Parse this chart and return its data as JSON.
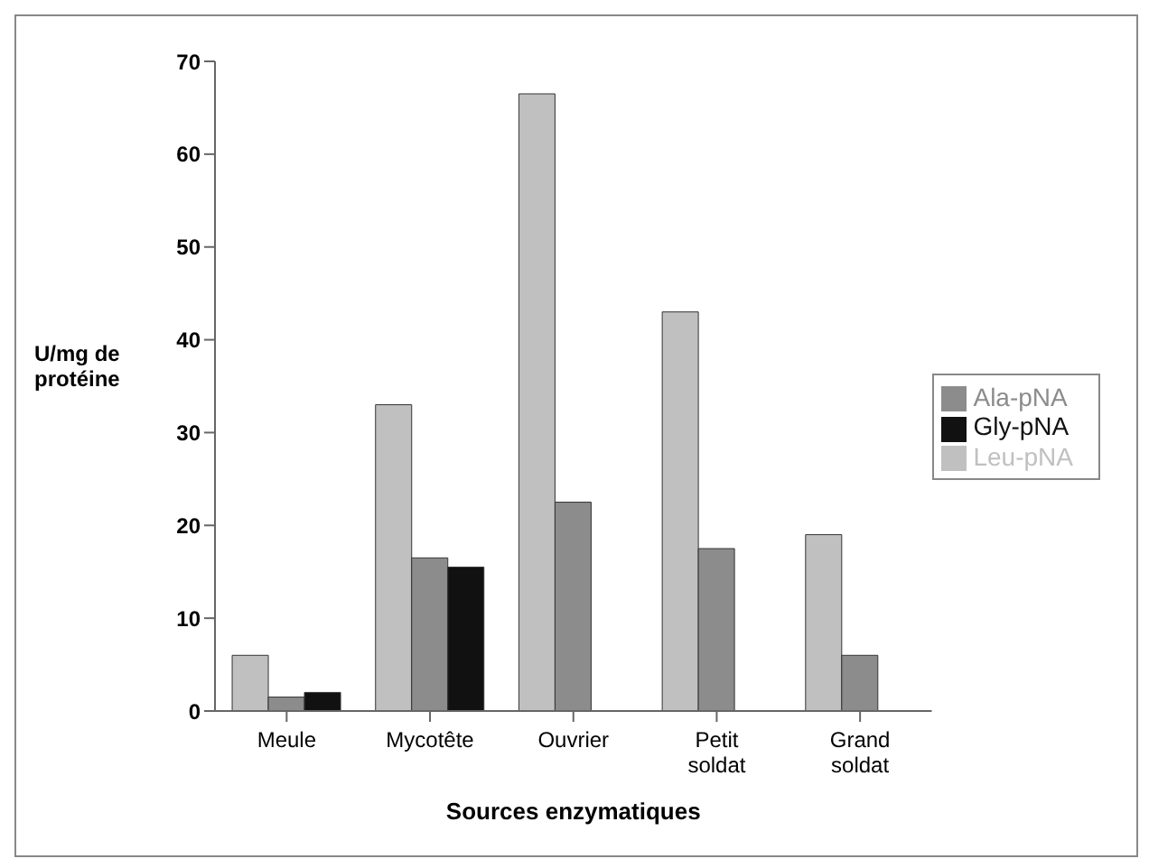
{
  "chart_data": {
    "type": "bar",
    "xlabel": "Sources enzymatiques",
    "ylabel": "U/mg de protéine",
    "categories": [
      "Meule",
      "Mycotête",
      "Ouvrier",
      "Petit soldat",
      "Grand soldat"
    ],
    "series": [
      {
        "name": "Leu-pNA",
        "color": "#c0c0c0",
        "values": [
          6,
          33,
          66.5,
          43,
          19
        ]
      },
      {
        "name": "Ala-pNA",
        "color": "#8c8c8c",
        "values": [
          1.5,
          16.5,
          22.5,
          17.5,
          6
        ]
      },
      {
        "name": "Gly-pNA",
        "color": "#111111",
        "values": [
          2,
          15.5,
          0,
          0,
          0
        ]
      }
    ],
    "ylim": [
      0,
      70
    ],
    "yticks": [
      0,
      10,
      20,
      30,
      40,
      50,
      60,
      70
    ],
    "grid": false,
    "legend": "right"
  }
}
